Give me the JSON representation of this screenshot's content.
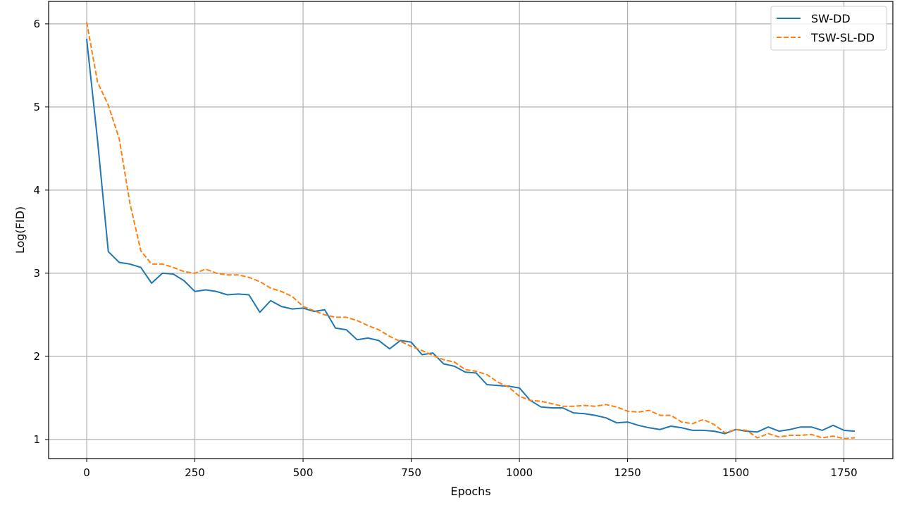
{
  "chart_data": {
    "type": "line",
    "title": "",
    "xlabel": "Epochs",
    "ylabel": "Log(FID)",
    "xlim": [
      -88,
      1863
    ],
    "ylim": [
      0.77,
      6.27
    ],
    "xticks": [
      0,
      250,
      500,
      750,
      1000,
      1250,
      1500,
      1750
    ],
    "yticks": [
      1,
      2,
      3,
      4,
      5,
      6
    ],
    "grid": true,
    "legend_position": "top-right",
    "series": [
      {
        "name": "SW-DD",
        "color": "#1f77b4",
        "style": "solid",
        "x": [
          0,
          25,
          50,
          75,
          100,
          125,
          150,
          175,
          200,
          225,
          250,
          275,
          300,
          325,
          350,
          375,
          400,
          425,
          450,
          475,
          500,
          525,
          550,
          575,
          600,
          625,
          650,
          675,
          700,
          725,
          750,
          775,
          800,
          825,
          850,
          875,
          900,
          925,
          950,
          975,
          1000,
          1025,
          1050,
          1075,
          1100,
          1125,
          1150,
          1175,
          1200,
          1225,
          1250,
          1275,
          1300,
          1325,
          1350,
          1375,
          1400,
          1425,
          1450,
          1475,
          1500,
          1525,
          1550,
          1575,
          1600,
          1625,
          1650,
          1675,
          1700,
          1725,
          1750,
          1775
        ],
        "y": [
          5.82,
          4.6,
          3.26,
          3.13,
          3.11,
          3.07,
          2.88,
          3.0,
          2.99,
          2.91,
          2.78,
          2.8,
          2.78,
          2.74,
          2.75,
          2.74,
          2.53,
          2.67,
          2.6,
          2.57,
          2.58,
          2.54,
          2.56,
          2.34,
          2.32,
          2.2,
          2.22,
          2.19,
          2.09,
          2.19,
          2.17,
          2.02,
          2.04,
          1.91,
          1.88,
          1.81,
          1.8,
          1.66,
          1.65,
          1.64,
          1.62,
          1.47,
          1.39,
          1.38,
          1.38,
          1.32,
          1.31,
          1.29,
          1.26,
          1.2,
          1.21,
          1.17,
          1.14,
          1.12,
          1.16,
          1.14,
          1.11,
          1.11,
          1.1,
          1.07,
          1.12,
          1.1,
          1.09,
          1.15,
          1.1,
          1.12,
          1.15,
          1.15,
          1.11,
          1.17,
          1.11,
          1.1
        ]
      },
      {
        "name": "TSW-SL-DD",
        "color": "#ff7f0e",
        "style": "dashed",
        "x": [
          0,
          25,
          50,
          75,
          100,
          125,
          150,
          175,
          200,
          225,
          250,
          275,
          300,
          325,
          350,
          375,
          400,
          425,
          450,
          475,
          500,
          525,
          550,
          575,
          600,
          625,
          650,
          675,
          700,
          725,
          750,
          775,
          800,
          825,
          850,
          875,
          900,
          925,
          950,
          975,
          1000,
          1025,
          1050,
          1075,
          1100,
          1125,
          1150,
          1175,
          1200,
          1225,
          1250,
          1275,
          1300,
          1325,
          1350,
          1375,
          1400,
          1425,
          1450,
          1475,
          1500,
          1525,
          1550,
          1575,
          1600,
          1625,
          1650,
          1675,
          1700,
          1725,
          1750,
          1775
        ],
        "y": [
          6.02,
          5.3,
          5.02,
          4.62,
          3.84,
          3.27,
          3.11,
          3.11,
          3.07,
          3.02,
          3.0,
          3.05,
          3.0,
          2.98,
          2.98,
          2.95,
          2.9,
          2.82,
          2.78,
          2.72,
          2.6,
          2.55,
          2.5,
          2.47,
          2.47,
          2.43,
          2.37,
          2.32,
          2.24,
          2.18,
          2.12,
          2.07,
          2.01,
          1.96,
          1.93,
          1.84,
          1.82,
          1.78,
          1.69,
          1.63,
          1.52,
          1.47,
          1.46,
          1.43,
          1.4,
          1.4,
          1.41,
          1.4,
          1.42,
          1.39,
          1.34,
          1.33,
          1.35,
          1.29,
          1.29,
          1.21,
          1.19,
          1.24,
          1.18,
          1.08,
          1.12,
          1.11,
          1.02,
          1.07,
          1.03,
          1.05,
          1.05,
          1.06,
          1.02,
          1.04,
          1.01,
          1.02
        ]
      }
    ]
  }
}
